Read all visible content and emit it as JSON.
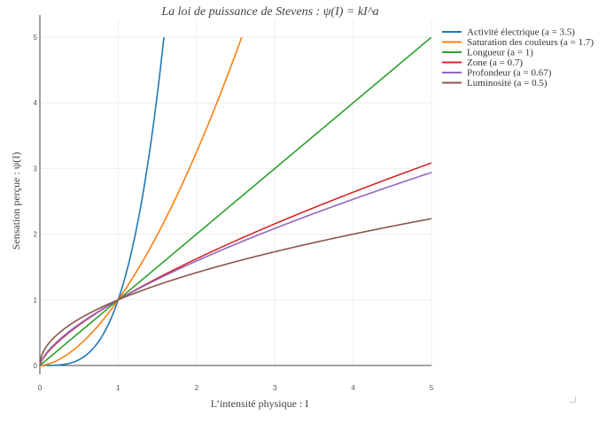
{
  "chart_data": {
    "type": "line",
    "title": "La loi de puissance de Stevens :   ψ(I) = kI^a",
    "xlabel": "L’intensité physique : I",
    "ylabel": "Sensation perçue  : ψ(I)",
    "xlim": [
      0,
      5
    ],
    "ylim": [
      0,
      5
    ],
    "xticks": [
      0,
      1,
      2,
      3,
      4,
      5
    ],
    "yticks": [
      0,
      1,
      2,
      3,
      4,
      5
    ],
    "grid": true,
    "legend_position": "top-right",
    "x": [
      0,
      0.25,
      0.5,
      0.75,
      1,
      1.25,
      1.5,
      1.75,
      2,
      2.25,
      2.5,
      2.75,
      3,
      3.25,
      3.5,
      3.75,
      4,
      4.25,
      4.5,
      4.75,
      5
    ],
    "series": [
      {
        "name": "Activité électrique (a = 3.5)",
        "exponent": 3.5,
        "color": "#1f77b4",
        "values": [
          0,
          0.008,
          0.088,
          0.365,
          1,
          2.184,
          4.134,
          null,
          null,
          null,
          null,
          null,
          null,
          null,
          null,
          null,
          null,
          null,
          null,
          null,
          null
        ]
      },
      {
        "name": "Saturation des couleurs (a = 1.7)",
        "exponent": 1.7,
        "color": "#ff7f0e",
        "values": [
          0,
          0.095,
          0.308,
          0.613,
          1,
          1.461,
          1.992,
          2.591,
          3.249,
          3.967,
          4.748,
          null,
          null,
          null,
          null,
          null,
          null,
          null,
          null,
          null,
          null
        ]
      },
      {
        "name": "Longueur (a = 1)",
        "exponent": 1,
        "color": "#2ca02c",
        "values": [
          0,
          0.25,
          0.5,
          0.75,
          1,
          1.25,
          1.5,
          1.75,
          2,
          2.25,
          2.5,
          2.75,
          3,
          3.25,
          3.5,
          3.75,
          4,
          4.25,
          4.5,
          4.75,
          5
        ]
      },
      {
        "name": "Zone (a = 0.7)",
        "exponent": 0.7,
        "color": "#d62728",
        "values": [
          0,
          0.379,
          0.616,
          0.818,
          1,
          1.169,
          1.328,
          1.479,
          1.625,
          1.764,
          1.899,
          2.031,
          2.158,
          2.282,
          2.404,
          2.523,
          2.639,
          2.754,
          2.866,
          2.976,
          3.085
        ]
      },
      {
        "name": "Profondeur (a = 0.67)",
        "exponent": 0.67,
        "color": "#9467bd",
        "values": [
          0,
          0.395,
          0.628,
          0.825,
          1,
          1.161,
          1.312,
          1.455,
          1.591,
          1.721,
          1.848,
          1.97,
          2.088,
          2.203,
          2.316,
          2.425,
          2.532,
          2.637,
          2.74,
          2.841,
          2.94
        ]
      },
      {
        "name": "Luminosité (a = 0.5)",
        "exponent": 0.5,
        "color": "#8c564b",
        "values": [
          0,
          0.5,
          0.707,
          0.866,
          1,
          1.118,
          1.225,
          1.323,
          1.414,
          1.5,
          1.581,
          1.658,
          1.732,
          1.803,
          1.871,
          1.936,
          2,
          2.062,
          2.121,
          2.179,
          2.236
        ]
      }
    ]
  }
}
